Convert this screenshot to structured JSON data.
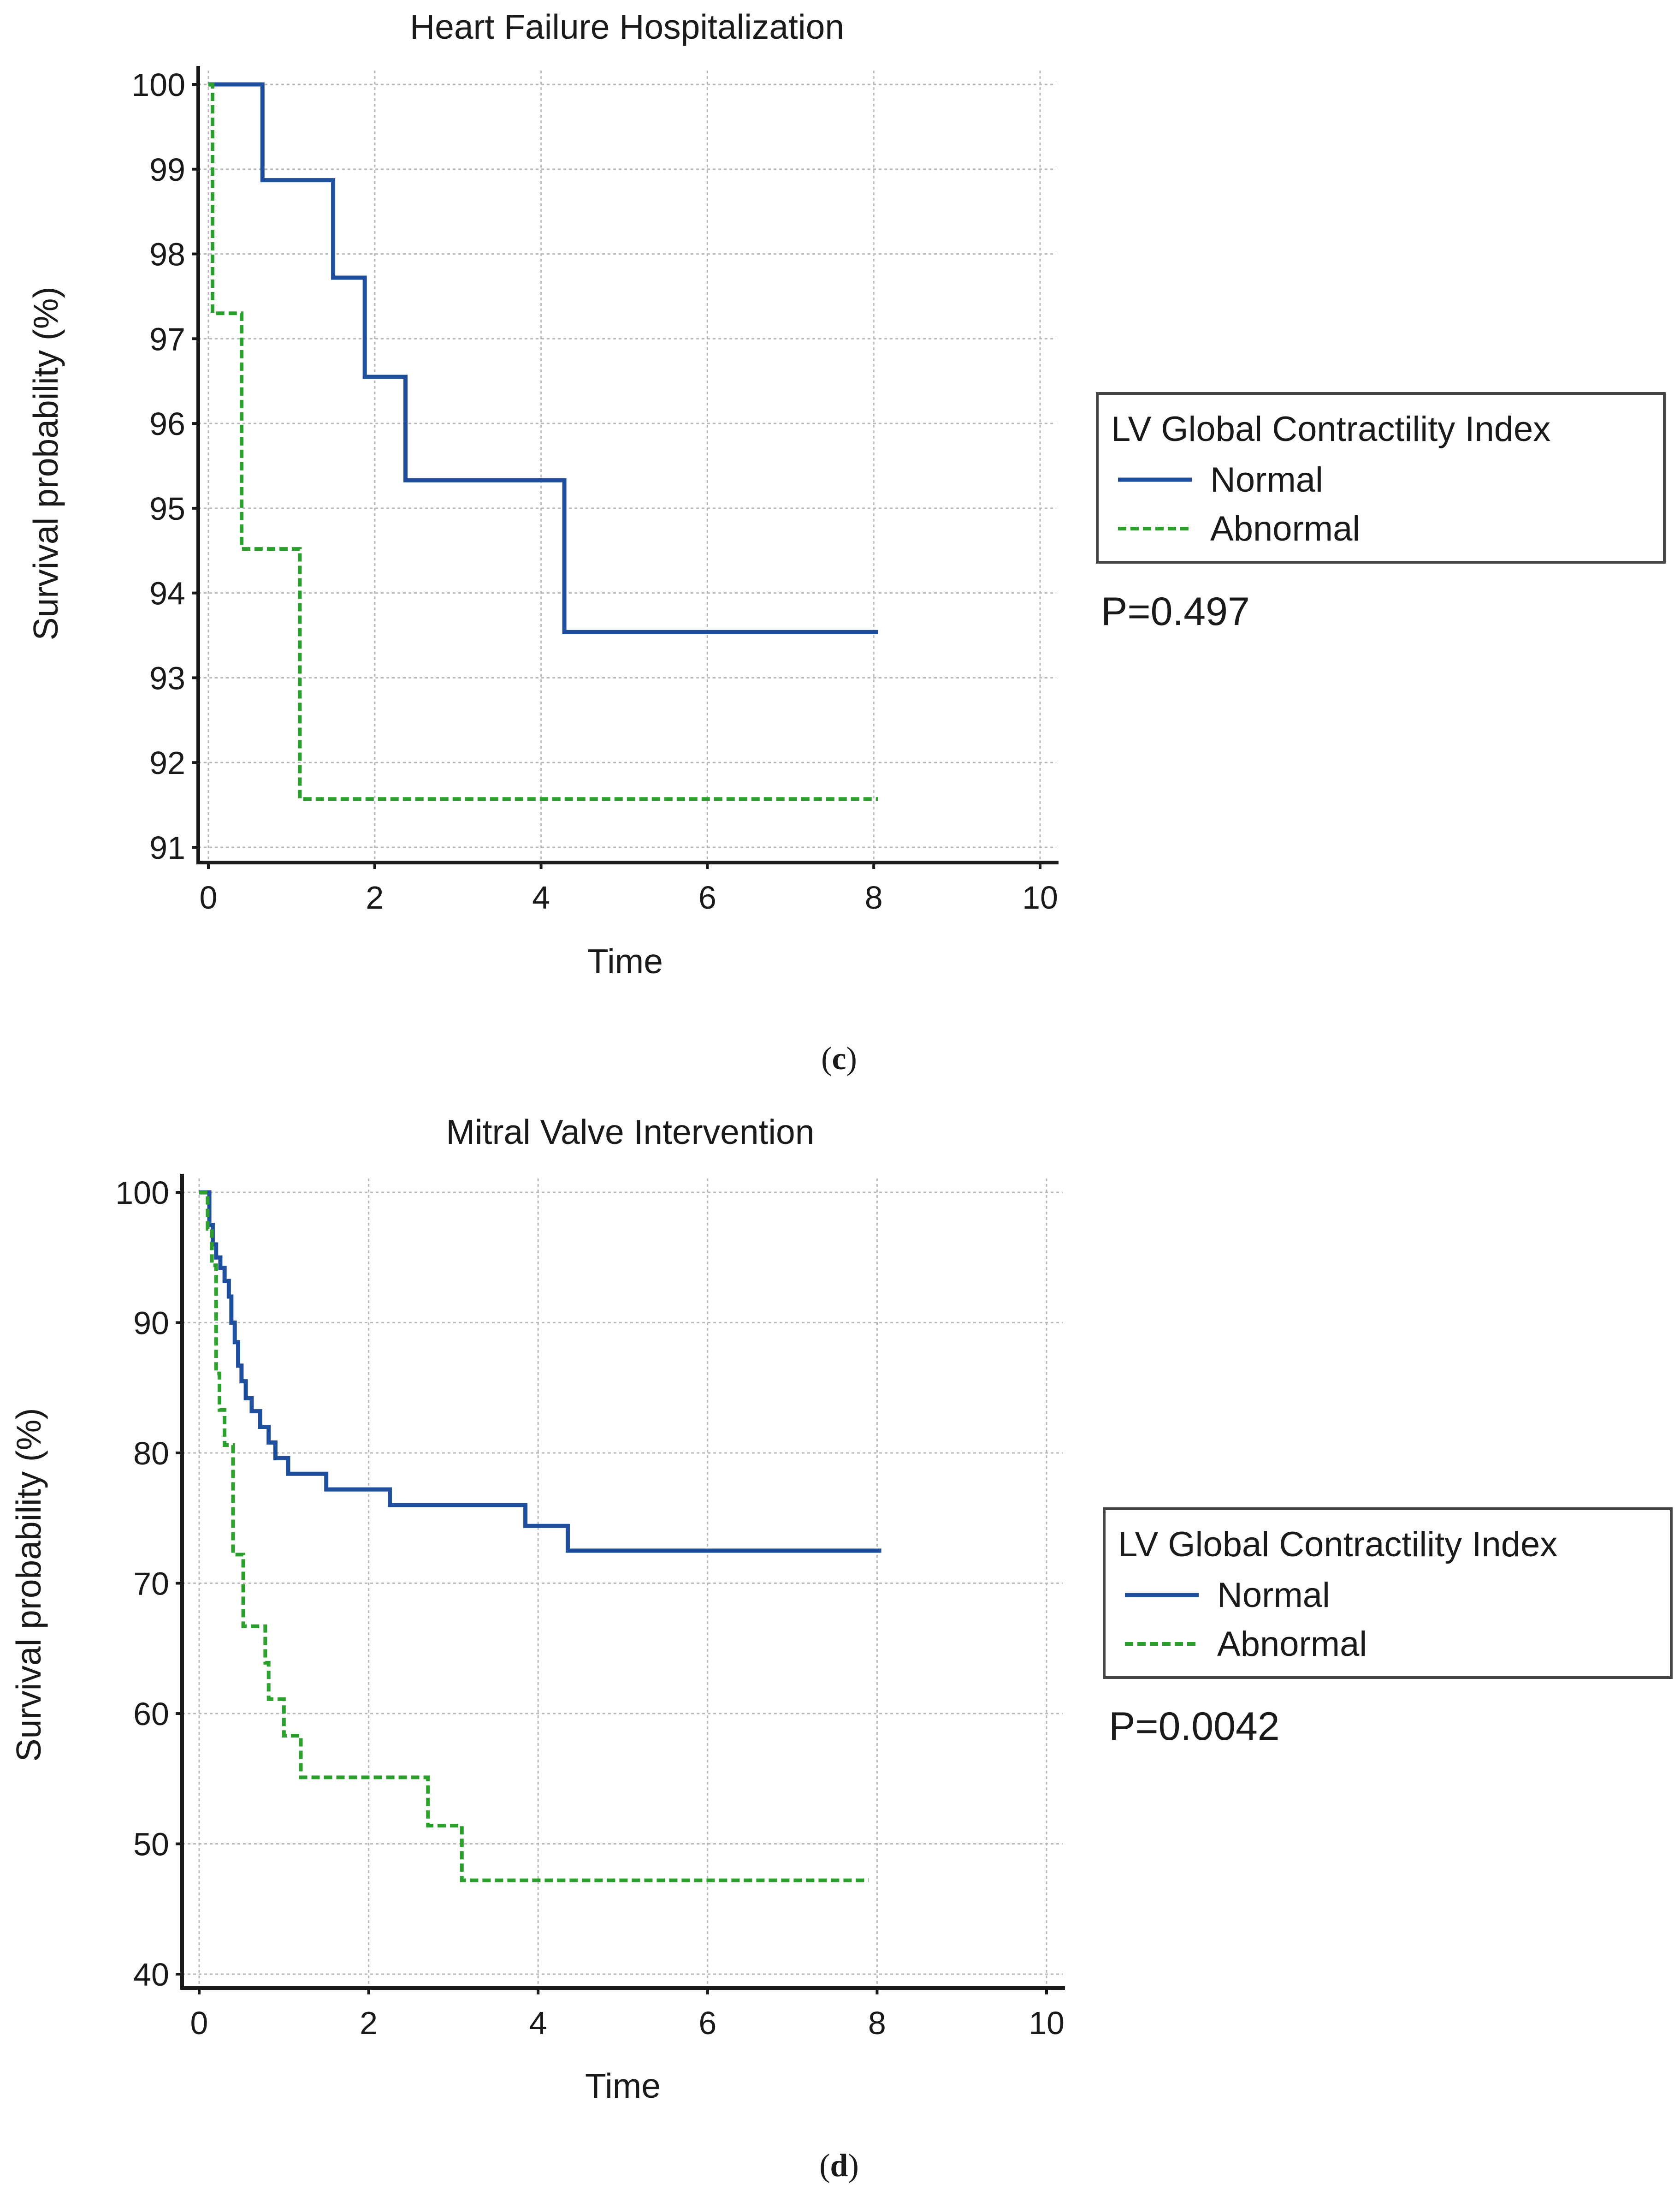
{
  "chart_data": [
    {
      "type": "line",
      "step": true,
      "title": "Heart Failure Hospitalization",
      "xlabel": "Time",
      "ylabel": "Survival probability (%)",
      "xlim": [
        0,
        10
      ],
      "ylim": [
        91,
        100
      ],
      "xticks": [
        0,
        2,
        4,
        6,
        8,
        10
      ],
      "yticks": [
        91,
        92,
        93,
        94,
        95,
        96,
        97,
        98,
        99,
        100
      ],
      "grid": true,
      "legend": {
        "title": "LV Global Contractility Index",
        "placement": "right"
      },
      "series": [
        {
          "name": "Normal",
          "color": "#1f4e9c",
          "style": "solid",
          "x": [
            0,
            0.65,
            1.5,
            1.88,
            2.37,
            4.28,
            8.05
          ],
          "y": [
            100,
            98.87,
            97.72,
            96.55,
            95.33,
            93.54,
            93.54
          ]
        },
        {
          "name": "Abnormal",
          "color": "#2ca02c",
          "style": "dashed",
          "x": [
            0,
            0.05,
            0.4,
            1.1,
            8.05
          ],
          "y": [
            100,
            97.3,
            94.52,
            91.57,
            91.57
          ]
        }
      ],
      "annotation": "P=0.497",
      "panel_label": "c"
    },
    {
      "type": "line",
      "step": true,
      "title": "Mitral Valve Intervention",
      "xlabel": "Time",
      "ylabel": "Survival probability (%)",
      "xlim": [
        0,
        10
      ],
      "ylim": [
        40,
        100
      ],
      "xticks": [
        0,
        2,
        4,
        6,
        8,
        10
      ],
      "yticks": [
        40,
        50,
        60,
        70,
        80,
        90,
        100
      ],
      "grid": true,
      "legend": {
        "title": "LV Global Contractility Index",
        "placement": "right"
      },
      "series": [
        {
          "name": "Normal",
          "color": "#1f4e9c",
          "style": "solid",
          "x": [
            0,
            0.12,
            0.16,
            0.2,
            0.25,
            0.3,
            0.35,
            0.38,
            0.42,
            0.46,
            0.5,
            0.55,
            0.62,
            0.72,
            0.82,
            0.9,
            1.05,
            1.5,
            2.25,
            3.85,
            4.35,
            8.05
          ],
          "y": [
            100,
            97.5,
            96,
            95,
            94.2,
            93.2,
            92,
            90,
            88.5,
            86.7,
            85.5,
            84.2,
            83.2,
            82,
            80.8,
            79.6,
            78.4,
            77.2,
            76,
            74.4,
            72.5,
            72.5
          ]
        },
        {
          "name": "Abnormal",
          "color": "#2ca02c",
          "style": "dashed",
          "x": [
            0,
            0.1,
            0.15,
            0.2,
            0.24,
            0.3,
            0.4,
            0.52,
            0.78,
            0.82,
            1.0,
            1.2,
            2.7,
            3.1,
            7.9
          ],
          "y": [
            100,
            97.2,
            94.4,
            86.1,
            83.3,
            80.6,
            72.2,
            66.7,
            63.9,
            61.1,
            58.3,
            55.1,
            51.4,
            47.2,
            47.2
          ]
        }
      ],
      "annotation": "P=0.0042",
      "panel_label": "d"
    }
  ]
}
